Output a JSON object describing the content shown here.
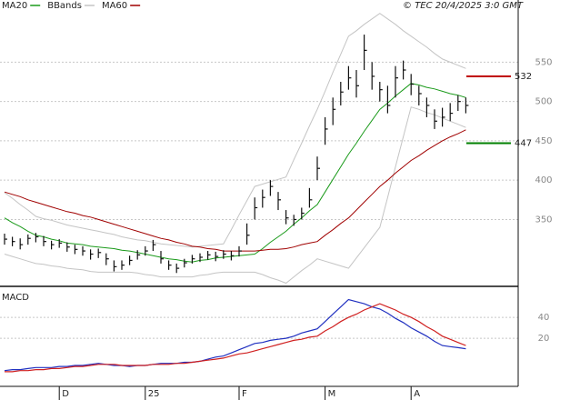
{
  "chart_data": [
    {
      "type": "ohlc",
      "copyright": "© TEC 20/4/2025 3:0 GMT",
      "categories": [
        null,
        null,
        null,
        null,
        null,
        null,
        null,
        "D",
        null,
        null,
        null,
        null,
        null,
        null,
        null,
        null,
        null,
        null,
        "25",
        null,
        null,
        null,
        null,
        null,
        null,
        null,
        null,
        null,
        null,
        null,
        "F",
        null,
        null,
        null,
        null,
        null,
        null,
        null,
        null,
        null,
        null,
        "M",
        null,
        null,
        null,
        null,
        null,
        null,
        null,
        null,
        null,
        null,
        "A",
        null,
        null,
        null,
        null,
        null,
        null,
        null
      ],
      "ohlc": {
        "color": "#111111",
        "high": [
          332,
          328,
          326,
          331,
          333,
          329,
          323,
          325,
          321,
          318,
          316,
          312,
          313,
          307,
          298,
          298,
          304,
          311,
          316,
          324,
          310,
          298,
          294,
          300,
          305,
          307,
          310,
          309,
          311,
          310,
          316,
          345,
          378,
          388,
          400,
          385,
          362,
          356,
          365,
          390,
          430,
          480,
          505,
          525,
          545,
          540,
          585,
          550,
          525,
          520,
          545,
          552,
          535,
          520,
          505,
          490,
          492,
          498,
          508,
          505
        ],
        "low": [
          318,
          316,
          312,
          318,
          321,
          316,
          312,
          314,
          309,
          306,
          304,
          299,
          301,
          292,
          284,
          286,
          292,
          299,
          304,
          310,
          294,
          286,
          282,
          289,
          294,
          296,
          299,
          297,
          300,
          298,
          303,
          318,
          350,
          365,
          380,
          362,
          344,
          342,
          350,
          365,
          400,
          445,
          470,
          495,
          515,
          505,
          540,
          515,
          500,
          485,
          505,
          528,
          508,
          495,
          480,
          465,
          468,
          475,
          488,
          485
        ],
        "close": [
          325,
          322,
          318,
          326,
          328,
          322,
          318,
          320,
          315,
          312,
          310,
          306,
          308,
          300,
          290,
          292,
          298,
          305,
          310,
          318,
          300,
          292,
          288,
          295,
          300,
          302,
          305,
          303,
          306,
          304,
          310,
          330,
          365,
          378,
          392,
          375,
          352,
          350,
          358,
          375,
          415,
          465,
          490,
          512,
          530,
          520,
          565,
          532,
          515,
          495,
          530,
          540,
          522,
          510,
          495,
          475,
          480,
          485,
          500,
          495
        ]
      },
      "series": [
        {
          "name": "MA20",
          "color": "#1a9a1a",
          "values": [
            352,
            346,
            341,
            335,
            330,
            328,
            325,
            323,
            320,
            319,
            318,
            316,
            315,
            314,
            313,
            311,
            310,
            308,
            306,
            304,
            302,
            300,
            299,
            297,
            296,
            298,
            299,
            301,
            302,
            303,
            304,
            305,
            306,
            313,
            321,
            328,
            335,
            344,
            352,
            361,
            369,
            385,
            401,
            417,
            433,
            447,
            462,
            476,
            490,
            498,
            507,
            515,
            523,
            521,
            518,
            516,
            513,
            510,
            508,
            505
          ]
        },
        {
          "name": "BBands",
          "color": "#c4c4c4",
          "upper": [
            384,
            377,
            369,
            362,
            354,
            351,
            349,
            346,
            343,
            341,
            339,
            337,
            335,
            333,
            331,
            328,
            326,
            324,
            323,
            321,
            319,
            318,
            317,
            316,
            315,
            316,
            317,
            318,
            319,
            337,
            356,
            374,
            392,
            395,
            398,
            401,
            404,
            426,
            447,
            469,
            490,
            513,
            537,
            560,
            583,
            590,
            598,
            605,
            612,
            605,
            598,
            590,
            583,
            576,
            569,
            561,
            554,
            550,
            546,
            542
          ],
          "lower": [
            306,
            303,
            300,
            297,
            294,
            293,
            291,
            290,
            288,
            287,
            286,
            284,
            283,
            283,
            283,
            283,
            283,
            282,
            280,
            279,
            277,
            277,
            277,
            277,
            277,
            279,
            280,
            282,
            283,
            283,
            283,
            283,
            283,
            280,
            276,
            273,
            269,
            277,
            285,
            292,
            300,
            297,
            294,
            291,
            288,
            301,
            314,
            327,
            340,
            378,
            417,
            455,
            493,
            490,
            486,
            483,
            479,
            475,
            471,
            467
          ]
        },
        {
          "name": "MA60",
          "color": "#a00000",
          "values": [
            385,
            382,
            379,
            375,
            372,
            369,
            366,
            363,
            360,
            358,
            355,
            353,
            350,
            347,
            344,
            341,
            338,
            335,
            332,
            329,
            326,
            324,
            321,
            319,
            316,
            315,
            313,
            312,
            310,
            310,
            310,
            310,
            310,
            311,
            312,
            312,
            313,
            315,
            318,
            320,
            322,
            330,
            337,
            345,
            352,
            362,
            372,
            382,
            392,
            400,
            409,
            417,
            425,
            431,
            438,
            444,
            450,
            455,
            459,
            464
          ]
        }
      ],
      "levels": [
        {
          "value": 532,
          "color": "#c00000"
        },
        {
          "value": 447,
          "color": "#008000"
        }
      ],
      "ylim": [
        265,
        629
      ],
      "yticks": [
        350,
        400,
        450,
        500,
        550
      ],
      "grid": true
    },
    {
      "type": "line",
      "title": "MACD",
      "series": [
        {
          "color": "#2030c0",
          "values": [
            -11,
            -10,
            -10,
            -9,
            -8,
            -8,
            -8,
            -7,
            -7,
            -6,
            -6,
            -5,
            -4,
            -5,
            -6,
            -6,
            -7,
            -6,
            -6,
            -5,
            -4,
            -4,
            -4,
            -3,
            -3,
            -2,
            0,
            2,
            3,
            6,
            9,
            12,
            15,
            16,
            18,
            19,
            20,
            22,
            25,
            27,
            29,
            36,
            43,
            50,
            57,
            55,
            53,
            50,
            48,
            44,
            39,
            35,
            30,
            26,
            22,
            17,
            13,
            12,
            11,
            10
          ]
        },
        {
          "color": "#d02020",
          "values": [
            -12,
            -12,
            -11,
            -11,
            -10,
            -10,
            -9,
            -9,
            -8,
            -7,
            -7,
            -6,
            -5,
            -5,
            -5,
            -6,
            -6,
            -6,
            -6,
            -5,
            -5,
            -5,
            -4,
            -4,
            -3,
            -2,
            -1,
            0,
            1,
            3,
            5,
            6,
            8,
            10,
            12,
            14,
            16,
            18,
            19,
            21,
            22,
            27,
            31,
            36,
            40,
            43,
            47,
            50,
            53,
            50,
            47,
            43,
            40,
            36,
            31,
            27,
            22,
            19,
            16,
            13
          ]
        }
      ],
      "ylim": [
        -26,
        67
      ],
      "yticks": [
        20,
        40
      ],
      "grid": true
    }
  ]
}
